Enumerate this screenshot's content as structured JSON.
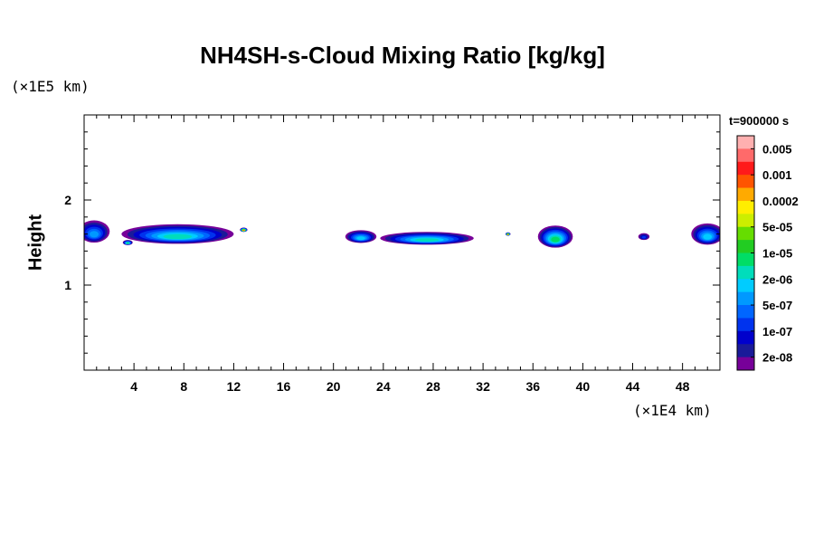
{
  "chart_data": {
    "type": "heatmap",
    "title": "NH4SH-s-Cloud Mixing Ratio [kg/kg]",
    "ylabel": "Height",
    "y_exponent_label": "(×1E5 km)",
    "x_exponent_label": "(×1E4 km)",
    "time_label": "t=900000 s",
    "xlim": [
      0,
      51
    ],
    "ylim": [
      0,
      3
    ],
    "xticks": [
      "4",
      "8",
      "12",
      "16",
      "20",
      "24",
      "28",
      "32",
      "36",
      "40",
      "44",
      "48"
    ],
    "yticks": [
      "1",
      "2"
    ],
    "colorbar": {
      "labels": [
        "0.005",
        "0.001",
        "0.0002",
        "5e-05",
        "1e-05",
        "2e-06",
        "5e-07",
        "1e-07",
        "2e-08"
      ],
      "colors": [
        "#ffb0b0",
        "#ff6a6a",
        "#ff1a1a",
        "#ff5500",
        "#ffaa00",
        "#ffee00",
        "#ccee00",
        "#66dd00",
        "#22cc22",
        "#00dd66",
        "#00ddbb",
        "#00ccff",
        "#0099ff",
        "#0066ff",
        "#0033ee",
        "#0000cc",
        "#1a1a99",
        "#770099"
      ]
    },
    "clouds": [
      {
        "x": 0.8,
        "y": 1.63,
        "w": 2.5,
        "h": 0.26,
        "level": 12
      },
      {
        "x": 7.5,
        "y": 1.6,
        "w": 9,
        "h": 0.23,
        "level": 10
      },
      {
        "x": 12.8,
        "y": 1.65,
        "w": 0.6,
        "h": 0.05,
        "level": 3
      },
      {
        "x": 3.5,
        "y": 1.5,
        "w": 0.8,
        "h": 0.06,
        "level": 9
      },
      {
        "x": 22.2,
        "y": 1.57,
        "w": 2.5,
        "h": 0.15,
        "level": 11
      },
      {
        "x": 27.5,
        "y": 1.55,
        "w": 7.5,
        "h": 0.15,
        "level": 10
      },
      {
        "x": 34.0,
        "y": 1.6,
        "w": 0.4,
        "h": 0.04,
        "level": 2
      },
      {
        "x": 37.8,
        "y": 1.57,
        "w": 2.8,
        "h": 0.26,
        "level": 9
      },
      {
        "x": 44.9,
        "y": 1.57,
        "w": 0.9,
        "h": 0.08,
        "level": 14
      },
      {
        "x": 50.0,
        "y": 1.6,
        "w": 2.6,
        "h": 0.25,
        "level": 11
      }
    ]
  }
}
